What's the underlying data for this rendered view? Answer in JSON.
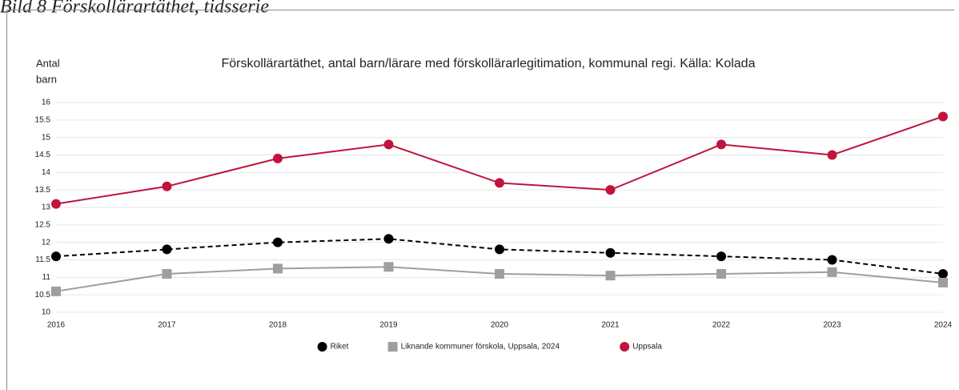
{
  "caption": "Bild 8 Förskollärartäthet, tidsserie",
  "chart_data": {
    "type": "line",
    "title": "Förskollärartäthet, antal barn/lärare med förskollärarlegitimation, kommunal regi. Källa: Kolada",
    "y_label": [
      "Antal",
      "barn"
    ],
    "categories": [
      "2016",
      "2017",
      "2018",
      "2019",
      "2020",
      "2021",
      "2022",
      "2023",
      "2024"
    ],
    "series": [
      {
        "name": "Riket",
        "color": "#000000",
        "dashed": true,
        "marker": "circle",
        "values": [
          11.6,
          11.8,
          12.0,
          12.1,
          11.8,
          11.7,
          11.6,
          11.5,
          11.1
        ]
      },
      {
        "name": "Liknande kommuner förskola, Uppsala, 2024",
        "color": "#9e9e9e",
        "dashed": false,
        "marker": "square",
        "values": [
          10.6,
          11.1,
          11.25,
          11.3,
          11.1,
          11.05,
          11.1,
          11.15,
          10.85
        ]
      },
      {
        "name": "Uppsala",
        "color": "#c0143c",
        "dashed": false,
        "marker": "circle",
        "values": [
          13.1,
          13.6,
          14.4,
          14.8,
          13.7,
          13.5,
          14.8,
          14.5,
          15.6
        ]
      }
    ],
    "ylim": [
      10,
      16
    ],
    "yticks": [
      10,
      10.5,
      11,
      11.5,
      12,
      12.5,
      13,
      13.5,
      14,
      14.5,
      15,
      15.5,
      16
    ],
    "grid": true,
    "legend": "bottom"
  }
}
